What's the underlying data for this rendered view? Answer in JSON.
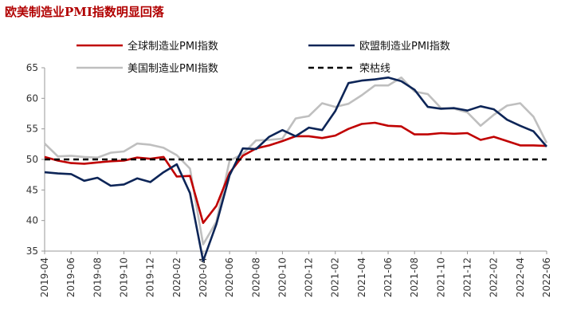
{
  "chart_data": {
    "type": "line",
    "title": "欧美制造业PMI指数明显回落",
    "x": [
      "2019-04",
      "2019-05",
      "2019-06",
      "2019-07",
      "2019-08",
      "2019-09",
      "2019-10",
      "2019-11",
      "2019-12",
      "2020-01",
      "2020-02",
      "2020-03",
      "2020-04",
      "2020-05",
      "2020-06",
      "2020-07",
      "2020-08",
      "2020-09",
      "2020-10",
      "2020-11",
      "2020-12",
      "2021-01",
      "2021-02",
      "2021-03",
      "2021-04",
      "2021-05",
      "2021-06",
      "2021-07",
      "2021-08",
      "2021-09",
      "2021-10",
      "2021-11",
      "2021-12",
      "2022-01",
      "2022-02",
      "2022-03",
      "2022-04",
      "2022-05",
      "2022-06"
    ],
    "x_tick_labels": [
      "2019-04",
      "2019-06",
      "2019-08",
      "2019-10",
      "2019-12",
      "2020-02",
      "2020-04",
      "2020-06",
      "2020-08",
      "2020-10",
      "2020-12",
      "2021-02",
      "2021-04",
      "2021-06",
      "2021-08",
      "2021-10",
      "2021-12",
      "2022-02",
      "2022-04",
      "2022-06"
    ],
    "ylim": [
      35,
      65
    ],
    "yticks": [
      35,
      40,
      45,
      50,
      55,
      60,
      65
    ],
    "legend_position": "top",
    "series": [
      {
        "name": "全球制造业PMI指数",
        "color": "#c00000",
        "style": "solid",
        "values": [
          50.4,
          49.8,
          49.4,
          49.3,
          49.5,
          49.7,
          49.8,
          50.3,
          50.1,
          50.4,
          47.2,
          47.3,
          39.6,
          42.4,
          47.8,
          50.6,
          51.8,
          52.3,
          53.0,
          53.8,
          53.8,
          53.5,
          53.9,
          55.0,
          55.8,
          56.0,
          55.5,
          55.4,
          54.1,
          54.1,
          54.3,
          54.2,
          54.3,
          53.2,
          53.7,
          53.0,
          52.3,
          52.3,
          52.2
        ]
      },
      {
        "name": "欧盟制造业PMI指数",
        "color": "#0d2557",
        "style": "solid",
        "values": [
          47.9,
          47.7,
          47.6,
          46.5,
          47.0,
          45.7,
          45.9,
          46.9,
          46.3,
          47.9,
          49.2,
          44.5,
          33.4,
          39.4,
          47.4,
          51.8,
          51.7,
          53.7,
          54.8,
          53.8,
          55.2,
          54.8,
          57.9,
          62.5,
          62.9,
          63.1,
          63.4,
          62.8,
          61.4,
          58.6,
          58.3,
          58.4,
          58.0,
          58.7,
          58.2,
          56.5,
          55.5,
          54.6,
          52.1
        ]
      },
      {
        "name": "美国制造业PMI指数",
        "color": "#bfbfbf",
        "style": "solid",
        "values": [
          52.6,
          50.5,
          50.6,
          50.4,
          50.3,
          51.1,
          51.3,
          52.6,
          52.4,
          51.9,
          50.7,
          48.5,
          36.1,
          39.8,
          49.8,
          50.9,
          53.1,
          53.2,
          53.4,
          56.7,
          57.1,
          59.2,
          58.6,
          59.1,
          60.5,
          62.1,
          62.1,
          63.4,
          61.1,
          60.7,
          58.4,
          58.3,
          57.7,
          55.5,
          57.3,
          58.8,
          59.2,
          57.0,
          52.7
        ]
      },
      {
        "name": "荣枯线",
        "color": "#000000",
        "style": "dashed",
        "values": [
          50,
          50,
          50,
          50,
          50,
          50,
          50,
          50,
          50,
          50,
          50,
          50,
          50,
          50,
          50,
          50,
          50,
          50,
          50,
          50,
          50,
          50,
          50,
          50,
          50,
          50,
          50,
          50,
          50,
          50,
          50,
          50,
          50,
          50,
          50,
          50,
          50,
          50,
          50
        ]
      }
    ]
  }
}
